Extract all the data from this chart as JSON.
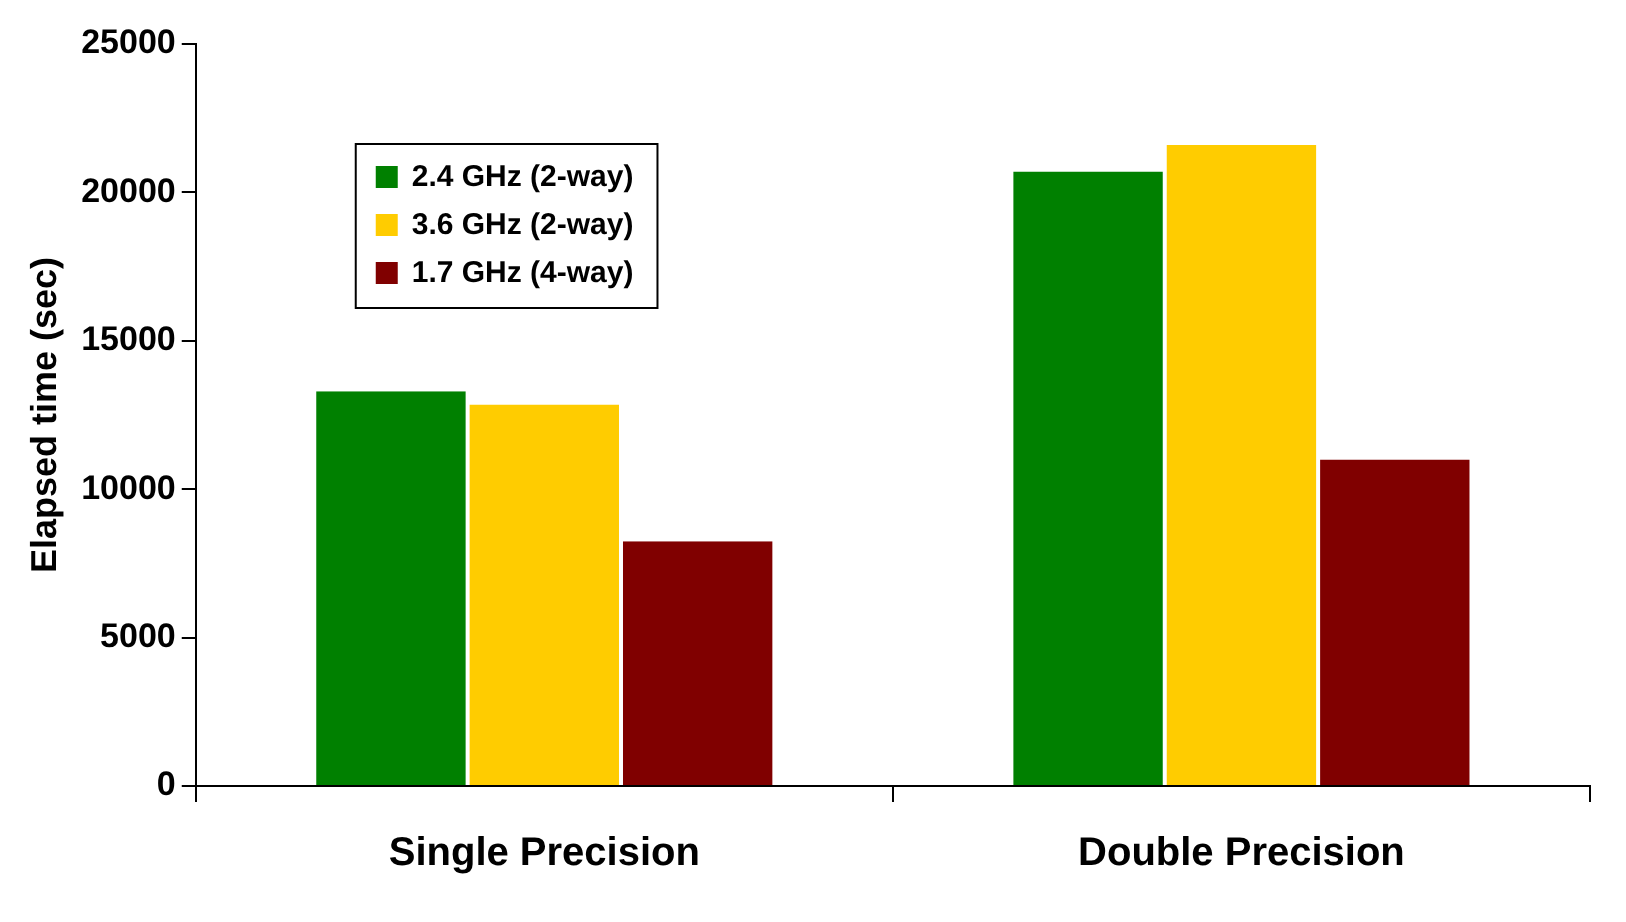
{
  "chart_data": {
    "type": "bar",
    "ylabel": "Elapsed time (sec)",
    "categories": [
      "Single Precision",
      "Double Precision"
    ],
    "series": [
      {
        "name": "2.4 GHz (2-way)",
        "color": "#008000",
        "values": [
          13300,
          20700
        ]
      },
      {
        "name": "3.6 GHz (2-way)",
        "color": "#ffcc00",
        "values": [
          12850,
          21600
        ]
      },
      {
        "name": "1.7 GHz (4-way)",
        "color": "#800000",
        "values": [
          8250,
          11000
        ]
      }
    ],
    "ylim": [
      0,
      25000
    ],
    "yticks": [
      0,
      5000,
      10000,
      15000,
      20000,
      25000
    ],
    "grid": false,
    "legend": "top left"
  }
}
